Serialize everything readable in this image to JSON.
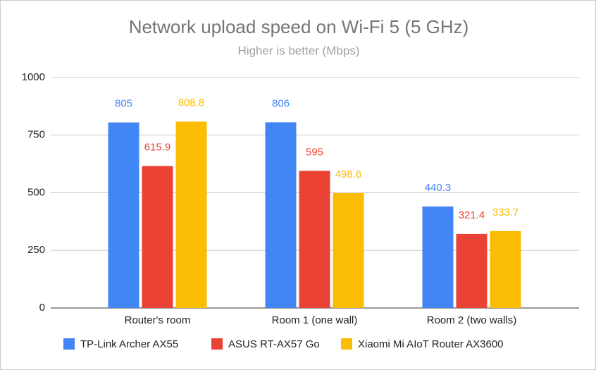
{
  "chart_data": {
    "type": "bar",
    "title": "Network upload speed on Wi-Fi 5 (5 GHz)",
    "subtitle": "Higher is better (Mbps)",
    "categories": [
      "Router's room",
      "Room 1 (one wall)",
      "Room 2 (two walls)"
    ],
    "series": [
      {
        "name": "TP-Link Archer AX55",
        "color": "#4285f4",
        "values": [
          805,
          806,
          440.3
        ]
      },
      {
        "name": "ASUS RT-AX57 Go",
        "color": "#ea4335",
        "values": [
          615.9,
          595,
          321.4
        ]
      },
      {
        "name": "Xiaomi Mi AIoT Router AX3600",
        "color": "#fbbc04",
        "values": [
          808.8,
          498.6,
          333.7
        ]
      }
    ],
    "ylim": [
      0,
      1000
    ],
    "yticks": [
      0,
      250,
      500,
      750,
      1000
    ],
    "grid": true,
    "legend": "bottom"
  }
}
